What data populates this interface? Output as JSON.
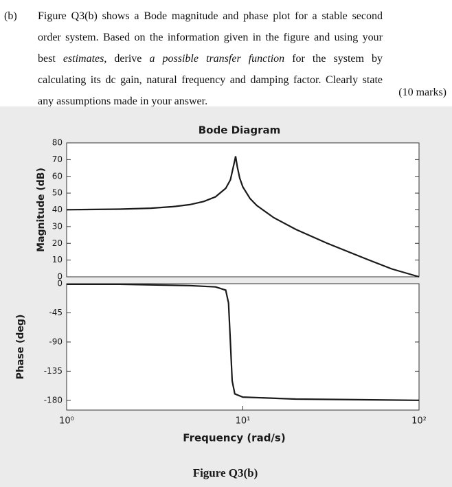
{
  "question": {
    "label": "(b)",
    "parts": [
      "Figure Q3(b) shows a Bode magnitude and phase plot for a stable second order system. Based on the information given in the figure and using your best ",
      "estimates",
      ", derive ",
      "a possible transfer function",
      " for the system by calculating its dc gain, natural frequency and damping factor. Clearly state any assumptions made in your answer."
    ],
    "marks": "(10 marks)"
  },
  "chart_data": [
    {
      "type": "line",
      "title": "Bode Diagram",
      "ylabel": "Magnitude (dB)",
      "x": [
        1,
        2,
        3,
        4,
        5,
        6,
        7,
        8,
        8.5,
        9,
        9.1,
        9.3,
        9.6,
        10,
        11,
        12,
        15,
        20,
        30,
        50,
        70,
        100
      ],
      "series": [
        {
          "color": "#1a1a1a",
          "values": [
            40.1,
            40.4,
            41.0,
            41.9,
            43.1,
            45.0,
            47.8,
            52.9,
            57.9,
            69.6,
            72,
            65.8,
            58.9,
            53.7,
            46.7,
            42.6,
            35.3,
            28.3,
            20.1,
            10.7,
            4.7,
            0
          ]
        }
      ],
      "xlim": [
        1,
        100
      ],
      "log_x": true,
      "ylim": [
        0,
        80
      ],
      "yticks": [
        0,
        10,
        20,
        30,
        40,
        50,
        60,
        70,
        80
      ]
    },
    {
      "type": "line",
      "ylabel": "Phase (deg)",
      "xlabel": "Frequency (rad/s)",
      "x": [
        1,
        2,
        5,
        7,
        8,
        8.3,
        8.5,
        8.7,
        9,
        10,
        20,
        100
      ],
      "series": [
        {
          "color": "#1a1a1a",
          "values": [
            -1,
            -1,
            -3,
            -5,
            -10,
            -30,
            -90,
            -150,
            -170,
            -175,
            -178,
            -180
          ]
        }
      ],
      "xlim": [
        1,
        100
      ],
      "log_x": true,
      "xticks": [
        {
          "value": 1,
          "label": "10⁰"
        },
        {
          "value": 10,
          "label": "10¹"
        },
        {
          "value": 100,
          "label": "10²"
        }
      ],
      "ylim": [
        -195,
        0
      ],
      "yticks": [
        0,
        -45,
        -90,
        -135,
        -180
      ]
    }
  ],
  "figure_caption": "Figure Q3(b)"
}
